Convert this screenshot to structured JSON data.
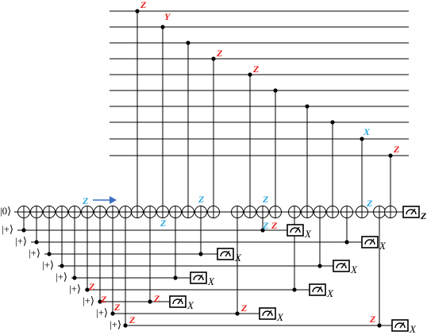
{
  "input_labels": {
    "main": "|0⟩",
    "ancillas": [
      "|+⟩",
      "|+⟩",
      "|+⟩",
      "|+⟩",
      "|+⟩",
      "|+⟩",
      "|+⟩",
      "|+⟩",
      "|+⟩"
    ]
  },
  "top_wire_labels": [
    "Z",
    "Y",
    "Z",
    "Z",
    "X",
    "Z"
  ],
  "annotations": [
    "Z",
    "Z",
    "Z",
    "Z",
    "Z",
    "Z",
    "Z",
    "Z",
    "Z",
    "Z",
    "Z",
    "Z",
    "Z",
    "Z"
  ],
  "measurement_labels": {
    "main": "Z",
    "ancillas": [
      "X",
      "X",
      "X",
      "X",
      "X",
      "X",
      "X",
      "X",
      "X"
    ]
  }
}
